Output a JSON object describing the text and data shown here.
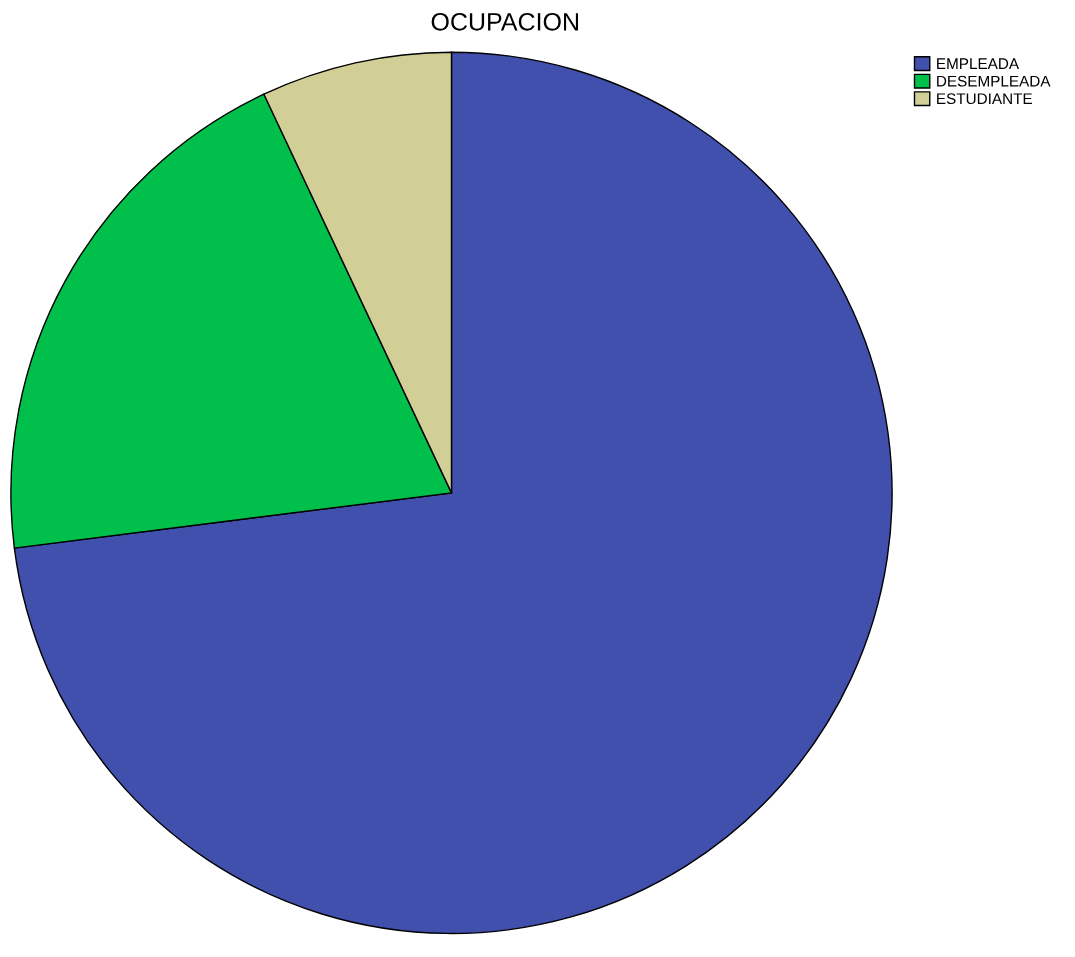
{
  "chart_data": {
    "type": "pie",
    "title": "OCUPACION",
    "categories": [
      "EMPLEADA",
      "DESEMPLEADA",
      "ESTUDIANTE"
    ],
    "values": [
      73,
      20,
      7
    ],
    "colors": [
      "#414fad",
      "#00c04b",
      "#d1cf96"
    ],
    "legend": "top right"
  }
}
